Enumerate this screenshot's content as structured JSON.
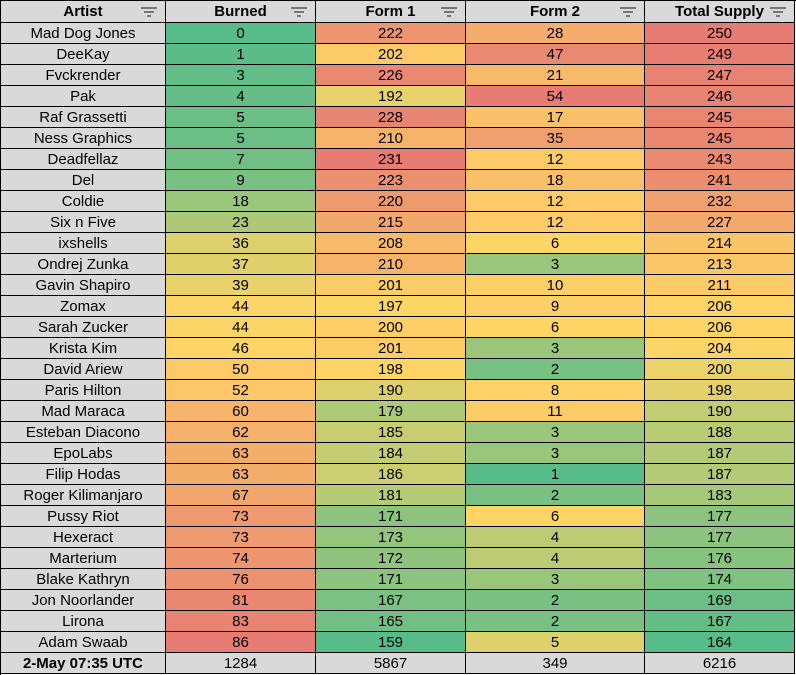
{
  "table": {
    "columns": [
      "Artist",
      "Burned",
      "Form 1",
      "Form 2",
      "Total Supply"
    ],
    "rows": [
      [
        "Mad Dog Jones",
        0,
        222,
        28,
        250
      ],
      [
        "DeeKay",
        1,
        202,
        47,
        249
      ],
      [
        "Fvckrender",
        3,
        226,
        21,
        247
      ],
      [
        "Pak",
        4,
        192,
        54,
        246
      ],
      [
        "Raf Grassetti",
        5,
        228,
        17,
        245
      ],
      [
        "Ness Graphics",
        5,
        210,
        35,
        245
      ],
      [
        "Deadfellaz",
        7,
        231,
        12,
        243
      ],
      [
        "Del",
        9,
        223,
        18,
        241
      ],
      [
        "Coldie",
        18,
        220,
        12,
        232
      ],
      [
        "Six n Five",
        23,
        215,
        12,
        227
      ],
      [
        "ixshells",
        36,
        208,
        6,
        214
      ],
      [
        "Ondrej Zunka",
        37,
        210,
        3,
        213
      ],
      [
        "Gavin Shapiro",
        39,
        201,
        10,
        211
      ],
      [
        "Zomax",
        44,
        197,
        9,
        206
      ],
      [
        "Sarah Zucker",
        44,
        200,
        6,
        206
      ],
      [
        "Krista Kim",
        46,
        201,
        3,
        204
      ],
      [
        "David Ariew",
        50,
        198,
        2,
        200
      ],
      [
        "Paris Hilton",
        52,
        190,
        8,
        198
      ],
      [
        "Mad Maraca",
        60,
        179,
        11,
        190
      ],
      [
        "Esteban Diacono",
        62,
        185,
        3,
        188
      ],
      [
        "EpoLabs",
        63,
        184,
        3,
        187
      ],
      [
        "Filip Hodas",
        63,
        186,
        1,
        187
      ],
      [
        "Roger Kilimanjaro",
        67,
        181,
        2,
        183
      ],
      [
        "Pussy Riot",
        73,
        171,
        6,
        177
      ],
      [
        "Hexeract",
        73,
        173,
        4,
        177
      ],
      [
        "Marterium",
        74,
        172,
        4,
        176
      ],
      [
        "Blake Kathryn",
        76,
        171,
        3,
        174
      ],
      [
        "Jon Noorlander",
        81,
        167,
        2,
        169
      ],
      [
        "Lirona",
        83,
        165,
        2,
        167
      ],
      [
        "Adam Swaab",
        86,
        159,
        5,
        164
      ]
    ],
    "footer": [
      "2-May 07:35 UTC",
      1284,
      5867,
      349,
      6216
    ]
  }
}
